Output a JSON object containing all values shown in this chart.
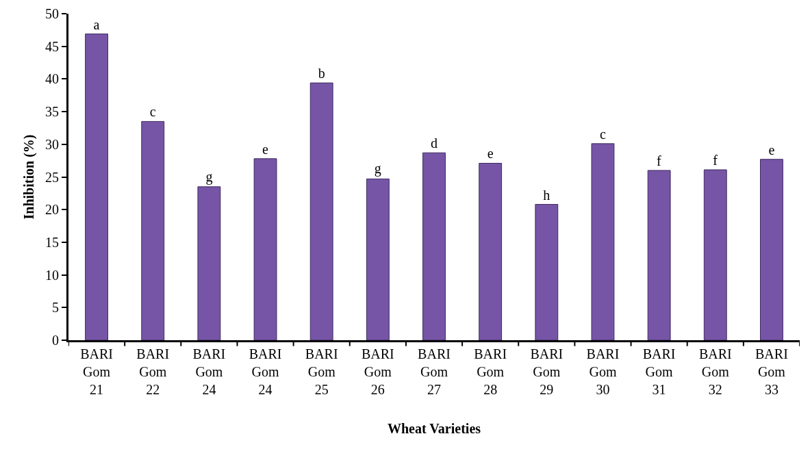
{
  "chart_data": {
    "type": "bar",
    "xlabel": "Wheat Varieties",
    "ylabel": "Inhibition (%)",
    "categories": [
      "BARI Gom 21",
      "BARI Gom 22",
      "BARI Gom 24",
      "BARI Gom 24",
      "BARI Gom 25",
      "BARI Gom 26",
      "BARI Gom 27",
      "BARI Gom 28",
      "BARI Gom 29",
      "BARI Gom 30",
      "BARI Gom 31",
      "BARI Gom 32",
      "BARI Gom 33"
    ],
    "values": [
      46.9,
      33.5,
      23.5,
      27.8,
      39.4,
      24.7,
      28.7,
      27.1,
      20.8,
      30.1,
      26.0,
      26.1,
      27.7
    ],
    "value_labels": [
      "a",
      "c",
      "g",
      "e",
      "b",
      "g",
      "d",
      "e",
      "h",
      "c",
      "f",
      "f",
      "e"
    ],
    "color": "#7655a6",
    "ylim": [
      0,
      50
    ],
    "yticks": [
      0,
      5,
      10,
      15,
      20,
      25,
      30,
      35,
      40,
      45,
      50
    ],
    "grid": false,
    "legend": false
  }
}
